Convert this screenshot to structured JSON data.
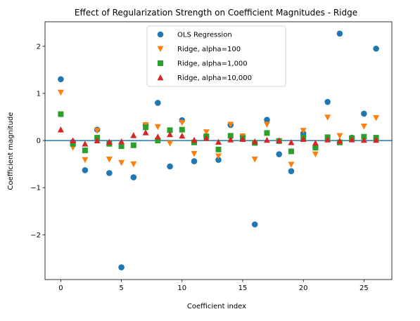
{
  "chart_data": {
    "type": "scatter",
    "title": "Effect of Regularization Strength on Coefficient Magnitudes - Ridge",
    "xlabel": "Coefficient index",
    "ylabel": "Coefficient magnitude",
    "xlim": [
      -1.3,
      27.3
    ],
    "ylim": [
      -2.95,
      2.52
    ],
    "x_ticks": [
      0,
      5,
      10,
      15,
      20,
      25
    ],
    "x_tick_labels": [
      "0",
      "5",
      "10",
      "15",
      "20",
      "25"
    ],
    "y_ticks": [
      2,
      1,
      0,
      -1,
      -2
    ],
    "y_tick_labels": [
      "2",
      "1",
      "0",
      "−1",
      "−2"
    ],
    "reference_line": {
      "y": 0,
      "color": "#1f77b4"
    },
    "legend_position": "upper center",
    "x": [
      0,
      1,
      2,
      3,
      4,
      5,
      6,
      7,
      8,
      9,
      10,
      11,
      12,
      13,
      14,
      15,
      16,
      17,
      18,
      19,
      20,
      21,
      22,
      23,
      24,
      25,
      26
    ],
    "series": [
      {
        "name": "OLS Regression",
        "marker": "circle",
        "color": "#1f77b4",
        "values": [
          1.3,
          -0.03,
          -0.63,
          0.23,
          -0.69,
          -2.69,
          -0.78,
          0.33,
          0.8,
          -0.55,
          0.43,
          -0.44,
          0.09,
          -0.41,
          0.33,
          0.09,
          -1.78,
          0.44,
          -0.29,
          -0.65,
          0.15,
          -0.15,
          0.82,
          2.27,
          0.06,
          0.57,
          1.95
        ]
      },
      {
        "name": "Ridge, alpha=100",
        "marker": "triangle-down",
        "color": "#ff7f0e",
        "values": [
          1.02,
          -0.15,
          -0.41,
          0.21,
          -0.4,
          -0.47,
          -0.5,
          0.33,
          0.29,
          -0.06,
          0.38,
          -0.28,
          0.18,
          -0.33,
          0.34,
          0.09,
          -0.4,
          0.34,
          -0.02,
          -0.51,
          0.21,
          -0.29,
          0.49,
          0.1,
          0.05,
          0.3,
          0.48
        ]
      },
      {
        "name": "Ridge, alpha=1,000",
        "marker": "square",
        "color": "#2ca02c",
        "values": [
          0.56,
          -0.07,
          -0.21,
          0.06,
          -0.07,
          -0.12,
          -0.1,
          0.28,
          0.0,
          0.22,
          0.23,
          -0.04,
          0.09,
          -0.19,
          0.1,
          0.05,
          -0.05,
          0.16,
          -0.01,
          -0.23,
          0.06,
          -0.15,
          0.07,
          -0.04,
          0.05,
          0.08,
          0.06
        ]
      },
      {
        "name": "Ridge, alpha=10,000",
        "marker": "triangle-up",
        "color": "#d62728",
        "values": [
          0.23,
          0.0,
          -0.07,
          0.0,
          -0.03,
          -0.02,
          0.11,
          0.17,
          0.08,
          0.13,
          0.1,
          0.01,
          0.05,
          -0.03,
          0.02,
          0.03,
          -0.02,
          0.01,
          0.0,
          -0.04,
          0.03,
          -0.05,
          0.02,
          -0.01,
          0.02,
          0.01,
          0.01
        ]
      }
    ]
  }
}
